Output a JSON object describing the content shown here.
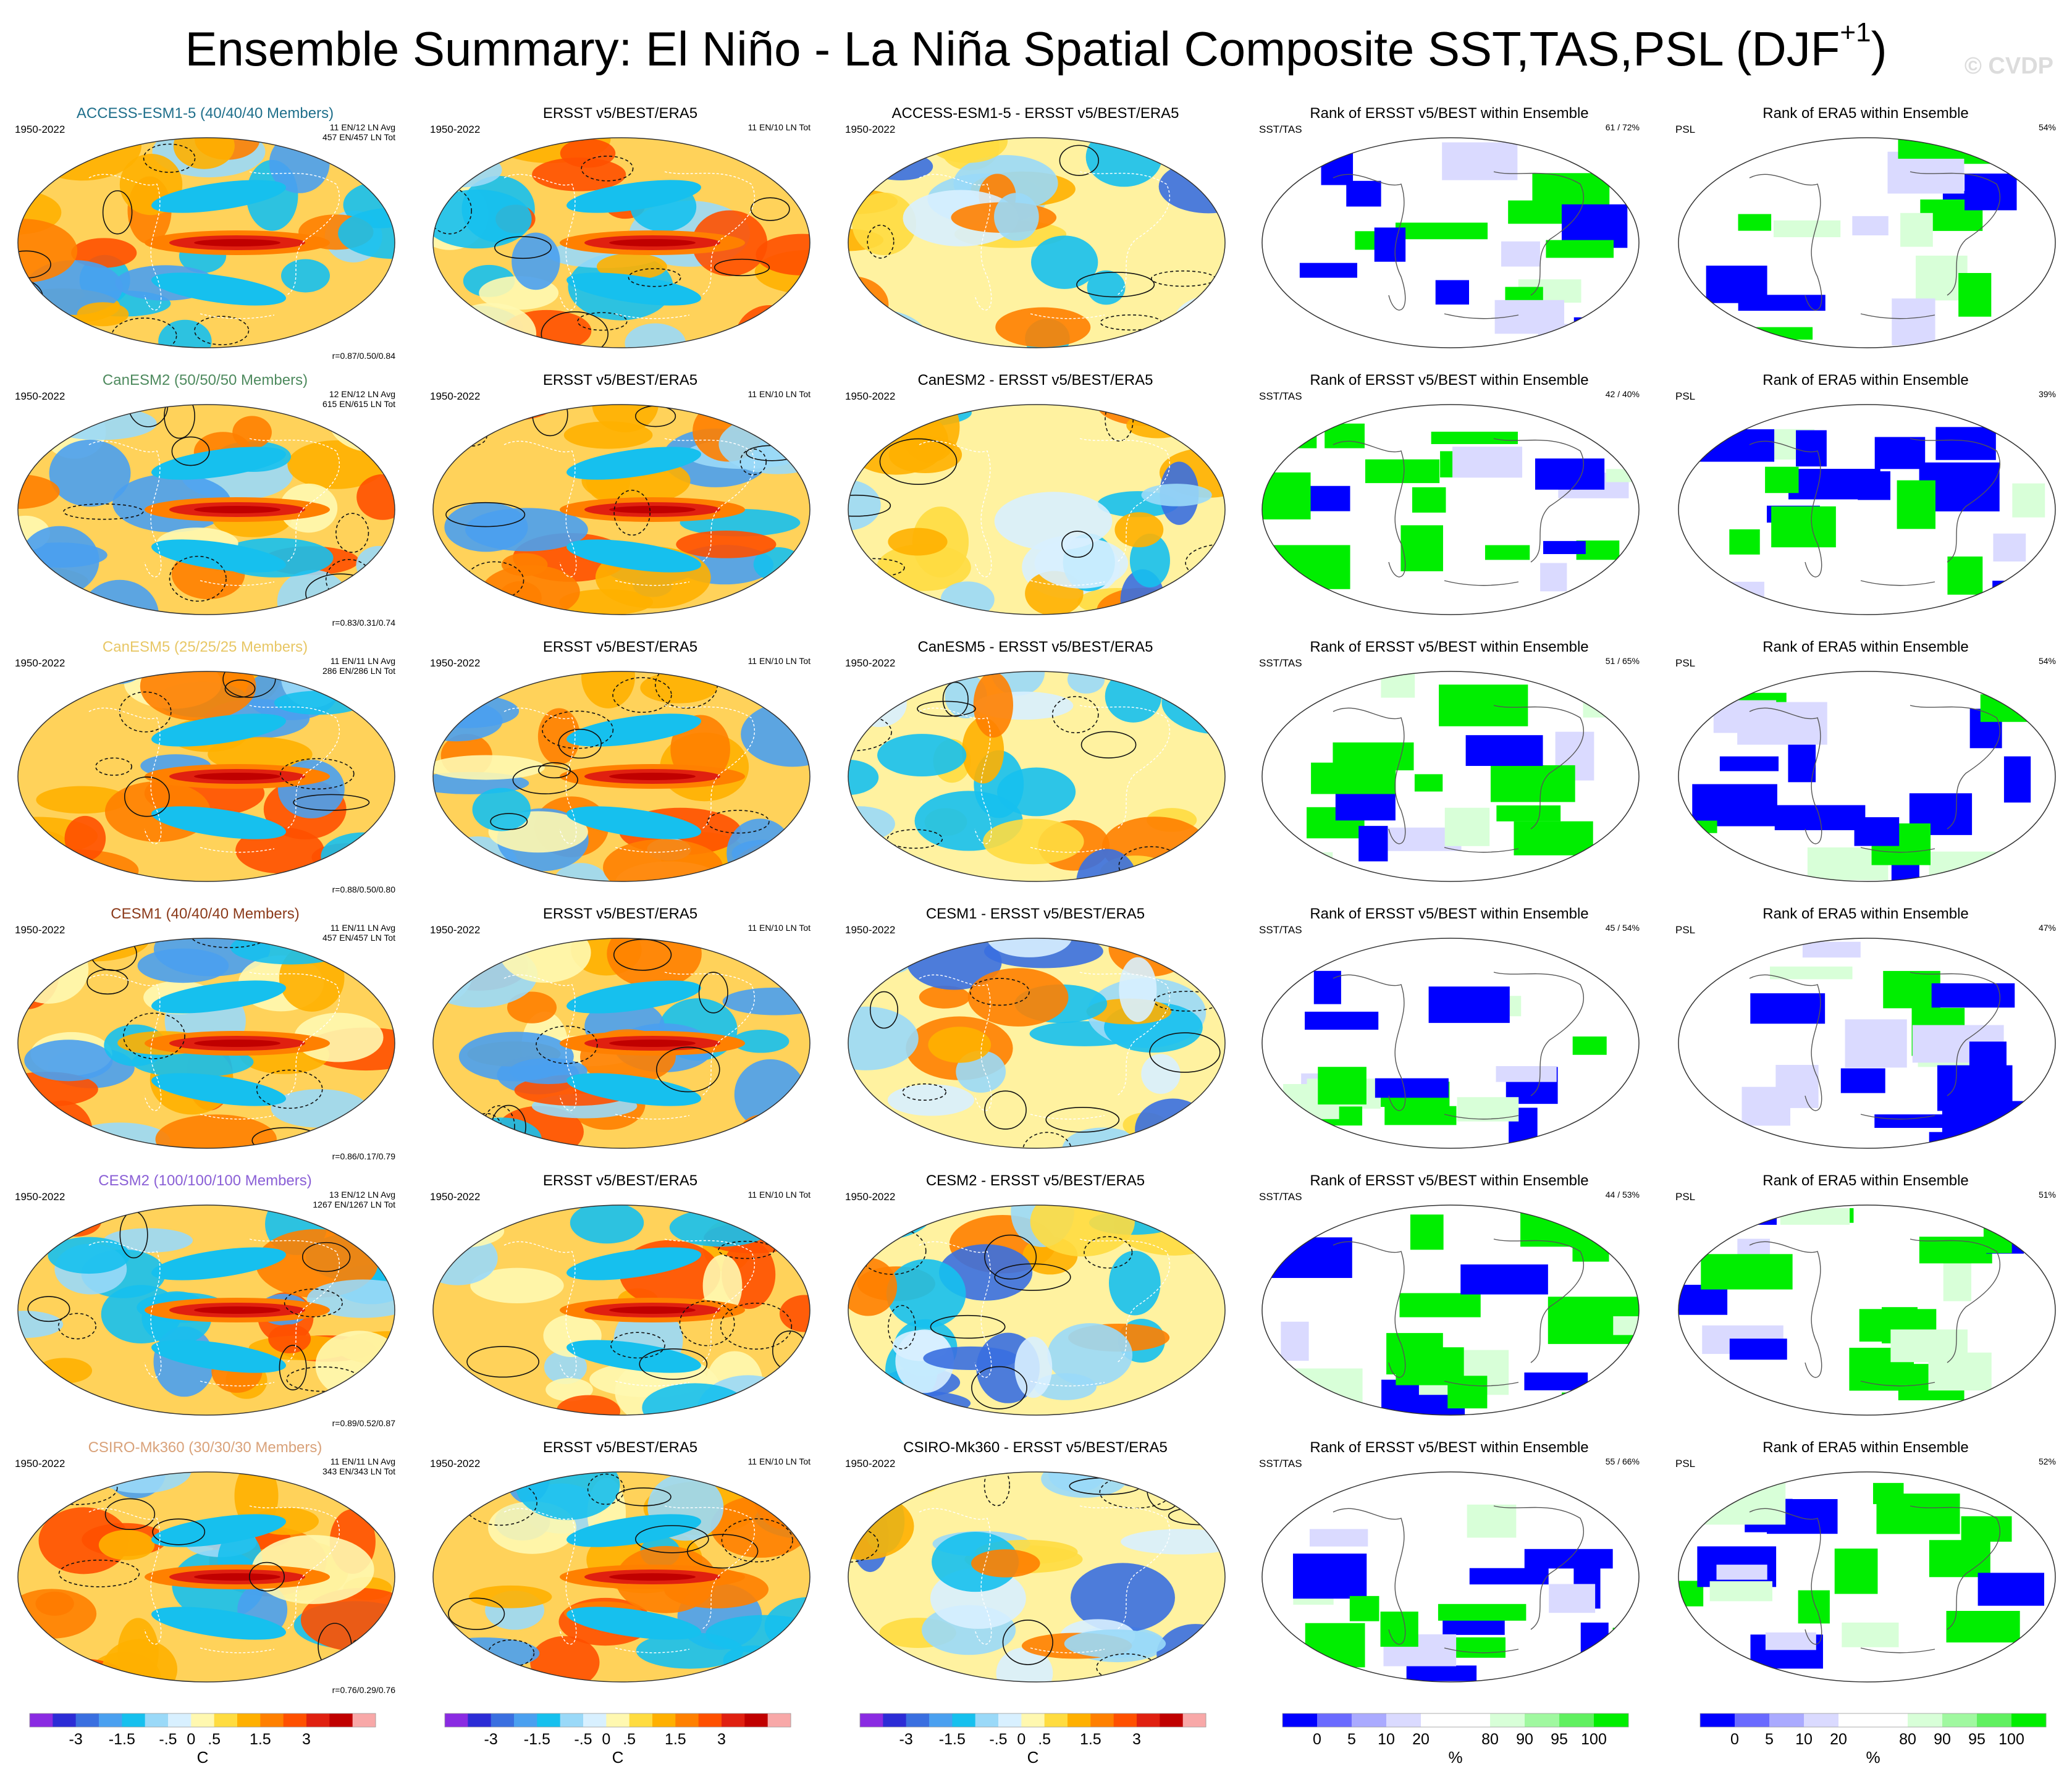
{
  "title": "Ensemble Summary: El Niño - La Niña Spatial Composite SST,TAS,PSL (DJF",
  "title_sup": "+1",
  "title_close": ")",
  "copyright": "© CVDP",
  "period": "1950-2022",
  "obs_title": "ERSST v5/BEST/ERA5",
  "obs_count": "11 EN/10 LN Tot",
  "rank_obs_title": "Rank of ERSST v5/BEST within Ensemble",
  "rank_era_title": "Rank of ERA5 within Ensemble",
  "sst_label": "SST/TAS",
  "psl_label": "PSL",
  "rows": [
    {
      "model": "ACCESS-ESM1-5 (40/40/40 Members)",
      "color": "#1f6f8b",
      "avg": "11 EN/12 LN Avg",
      "tot": "457 EN/457 LN Tot",
      "r": "r=0.87/0.50/0.84",
      "diff": "ACCESS-ESM1-5 - ERSST v5/BEST/ERA5",
      "rank_sst": "61 /  72%",
      "rank_psl": "54%"
    },
    {
      "model": "CanESM2 (50/50/50 Members)",
      "color": "#4e8a5e",
      "avg": "12 EN/12 LN Avg",
      "tot": "615 EN/615 LN Tot",
      "r": "r=0.83/0.31/0.74",
      "diff": "CanESM2 - ERSST v5/BEST/ERA5",
      "rank_sst": "42 /  40%",
      "rank_psl": "39%"
    },
    {
      "model": "CanESM5 (25/25/25 Members)",
      "color": "#e8c766",
      "avg": "11 EN/11 LN Avg",
      "tot": "286 EN/286 LN Tot",
      "r": "r=0.88/0.50/0.80",
      "diff": "CanESM5 - ERSST v5/BEST/ERA5",
      "rank_sst": "51 /  65%",
      "rank_psl": "54%"
    },
    {
      "model": "CESM1 (40/40/40 Members)",
      "color": "#8b3a1a",
      "avg": "11 EN/11 LN Avg",
      "tot": "457 EN/457 LN Tot",
      "r": "r=0.86/0.17/0.79",
      "diff": "CESM1 - ERSST v5/BEST/ERA5",
      "rank_sst": "45 /  54%",
      "rank_psl": "47%"
    },
    {
      "model": "CESM2 (100/100/100 Members)",
      "color": "#8a5fd6",
      "avg": "13 EN/12 LN Avg",
      "tot": "1267 EN/1267 LN Tot",
      "r": "r=0.89/0.52/0.87",
      "diff": "CESM2 - ERSST v5/BEST/ERA5",
      "rank_sst": "44 /  53%",
      "rank_psl": "51%"
    },
    {
      "model": "CSIRO-Mk360 (30/30/30 Members)",
      "color": "#d9a27a",
      "avg": "11 EN/11 LN Avg",
      "tot": "343 EN/343 LN Tot",
      "r": "r=0.76/0.29/0.76",
      "diff": "CSIRO-Mk360 - ERSST v5/BEST/ERA5",
      "rank_sst": "55 /  66%",
      "rank_psl": "52%"
    }
  ],
  "colorbars": {
    "temp": {
      "colors": [
        "#8a2be2",
        "#2c2cd6",
        "#3a6fe0",
        "#4aa0f0",
        "#16c0ee",
        "#9ad9f8",
        "#d8f0ff",
        "#fff8b0",
        "#ffdc40",
        "#ffb000",
        "#ff8000",
        "#ff5000",
        "#e02010",
        "#c00000",
        "#f8a8a8"
      ],
      "labels": [
        "-3",
        "-1.5",
        "-.5",
        "0",
        ".5",
        "1.5",
        "3"
      ],
      "unit": "C"
    },
    "rank": {
      "colors": [
        "#0000ff",
        "#6a6aff",
        "#aaaaff",
        "#dadaff",
        "#ffffff",
        "#ffffff",
        "#d8ffd8",
        "#a0f8a0",
        "#60f060",
        "#00ee00"
      ],
      "labels": [
        "0",
        "5",
        "10",
        "20",
        "80",
        "90",
        "95",
        "100"
      ],
      "unit": "%"
    }
  }
}
